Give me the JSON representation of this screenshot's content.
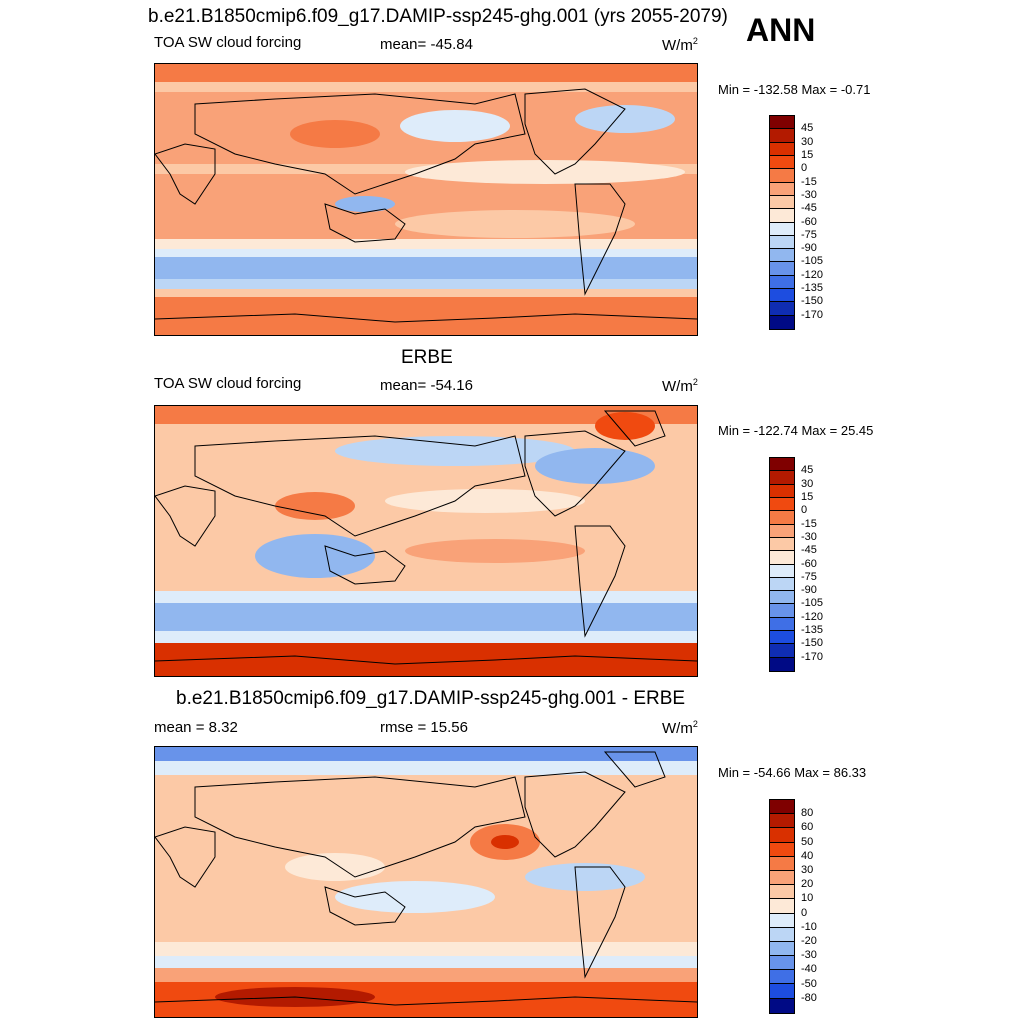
{
  "season": "ANN",
  "panels": [
    {
      "title": "b.e21.B1850cmip6.f09_g17.DAMIP-ssp245-ghg.001 (yrs 2055-2079)",
      "left_label": "TOA SW cloud forcing",
      "center_label": "mean= -45.84",
      "units": "W/m",
      "units_sup": "2",
      "minmax": "Min = -132.58 Max =  -0.71",
      "colorbar": {
        "labels": [
          "45",
          "30",
          "15",
          "0",
          "-15",
          "-30",
          "-45",
          "-60",
          "-75",
          "-90",
          "-105",
          "-120",
          "-135",
          "-150",
          "-170"
        ]
      }
    },
    {
      "title": "ERBE",
      "left_label": "TOA SW cloud forcing",
      "center_label": "mean= -54.16",
      "units": "W/m",
      "units_sup": "2",
      "minmax": "Min = -122.74 Max =  25.45",
      "colorbar": {
        "labels": [
          "45",
          "30",
          "15",
          "0",
          "-15",
          "-30",
          "-45",
          "-60",
          "-75",
          "-90",
          "-105",
          "-120",
          "-135",
          "-150",
          "-170"
        ]
      }
    },
    {
      "title": "b.e21.B1850cmip6.f09_g17.DAMIP-ssp245-ghg.001 - ERBE",
      "left_label": "mean =   8.32",
      "center_label": "rmse =  15.56",
      "units": "W/m",
      "units_sup": "2",
      "minmax": "Min = -54.66 Max =  86.33",
      "colorbar": {
        "labels": [
          "80",
          "60",
          "50",
          "40",
          "30",
          "20",
          "10",
          "0",
          "-10",
          "-20",
          "-30",
          "-40",
          "-50",
          "-80"
        ]
      }
    }
  ],
  "colors": {
    "scale16": [
      "#7f0000",
      "#b31a00",
      "#d93000",
      "#f04a10",
      "#f57a45",
      "#f9a278",
      "#fcc9a6",
      "#fde9d7",
      "#deecfa",
      "#bcd6f5",
      "#91b7ef",
      "#6893ea",
      "#3f6fe6",
      "#1d4de0",
      "#0f2db3",
      "#000a85"
    ],
    "scale15": [
      "#7f0000",
      "#b31a00",
      "#d93000",
      "#f04a10",
      "#f57a45",
      "#f9a278",
      "#fcc9a6",
      "#fde9d7",
      "#deecfa",
      "#bcd6f5",
      "#91b7ef",
      "#6893ea",
      "#3f6fe6",
      "#1d4de0",
      "#000a85"
    ],
    "land_line": "#000000"
  }
}
